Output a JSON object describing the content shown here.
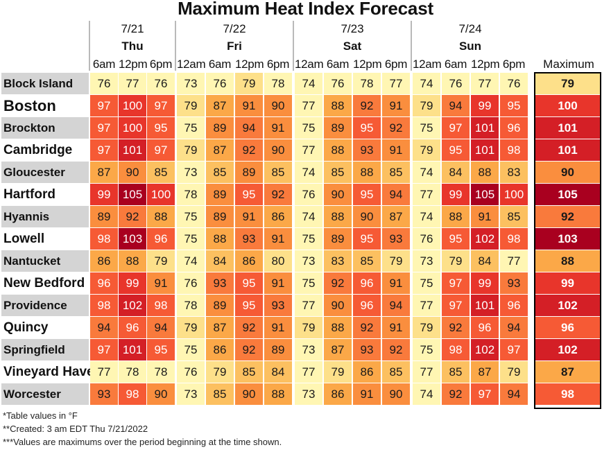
{
  "title": "Maximum Heat Index Forecast",
  "days": [
    {
      "date": "7/21",
      "dow": "Thu",
      "hours": [
        "6am",
        "12pm",
        "6pm"
      ]
    },
    {
      "date": "7/22",
      "dow": "Fri",
      "hours": [
        "12am",
        "6am",
        "12pm",
        "6pm"
      ]
    },
    {
      "date": "7/23",
      "dow": "Sat",
      "hours": [
        "12am",
        "6am",
        "12pm",
        "6pm"
      ]
    },
    {
      "date": "7/24",
      "dow": "Sun",
      "hours": [
        "12am",
        "6am",
        "12pm",
        "6pm"
      ]
    }
  ],
  "maximum_header": "Maximum",
  "chart_data": {
    "type": "table",
    "title": "Maximum Heat Index Forecast",
    "columns": [
      "7/21 Thu 6am",
      "7/21 Thu 12pm",
      "7/21 Thu 6pm",
      "7/22 Fri 12am",
      "7/22 Fri 6am",
      "7/22 Fri 12pm",
      "7/22 Fri 6pm",
      "7/23 Sat 12am",
      "7/23 Sat 6am",
      "7/23 Sat 12pm",
      "7/23 Sat 6pm",
      "7/24 Sun 12am",
      "7/24 Sun 6am",
      "7/24 Sun 12pm",
      "7/24 Sun 6pm",
      "Maximum"
    ],
    "rows": [
      {
        "location": "Block Island",
        "values": [
          76,
          77,
          76,
          73,
          76,
          79,
          78,
          74,
          76,
          78,
          77,
          74,
          76,
          77,
          76
        ],
        "max": 79
      },
      {
        "location": "Boston",
        "values": [
          97,
          100,
          97,
          79,
          87,
          91,
          90,
          77,
          88,
          92,
          91,
          79,
          94,
          99,
          95
        ],
        "max": 100
      },
      {
        "location": "Brockton",
        "values": [
          97,
          100,
          95,
          75,
          89,
          94,
          91,
          75,
          89,
          95,
          92,
          75,
          97,
          101,
          96
        ],
        "max": 101
      },
      {
        "location": "Cambridge",
        "values": [
          97,
          101,
          97,
          79,
          87,
          92,
          90,
          77,
          88,
          93,
          91,
          79,
          95,
          101,
          98
        ],
        "max": 101
      },
      {
        "location": "Gloucester",
        "values": [
          87,
          90,
          85,
          73,
          85,
          89,
          85,
          74,
          85,
          88,
          85,
          74,
          84,
          88,
          83
        ],
        "max": 90
      },
      {
        "location": "Hartford",
        "values": [
          99,
          105,
          100,
          78,
          89,
          95,
          92,
          76,
          90,
          95,
          94,
          77,
          99,
          105,
          100
        ],
        "max": 105
      },
      {
        "location": "Hyannis",
        "values": [
          89,
          92,
          88,
          75,
          89,
          91,
          86,
          74,
          88,
          90,
          87,
          74,
          88,
          91,
          85
        ],
        "max": 92
      },
      {
        "location": "Lowell",
        "values": [
          98,
          103,
          96,
          75,
          88,
          93,
          91,
          75,
          89,
          95,
          93,
          76,
          95,
          102,
          98
        ],
        "max": 103
      },
      {
        "location": "Nantucket",
        "values": [
          86,
          88,
          79,
          74,
          84,
          86,
          80,
          73,
          83,
          85,
          79,
          73,
          79,
          84,
          77
        ],
        "max": 88
      },
      {
        "location": "New Bedford",
        "values": [
          96,
          99,
          91,
          76,
          93,
          95,
          91,
          75,
          92,
          96,
          91,
          75,
          97,
          99,
          93
        ],
        "max": 99
      },
      {
        "location": "Providence",
        "values": [
          98,
          102,
          98,
          78,
          89,
          95,
          93,
          77,
          90,
          96,
          94,
          77,
          97,
          101,
          96
        ],
        "max": 102
      },
      {
        "location": "Quincy",
        "values": [
          94,
          96,
          94,
          79,
          87,
          92,
          91,
          79,
          88,
          92,
          91,
          79,
          92,
          96,
          94
        ],
        "max": 96
      },
      {
        "location": "Springfield",
        "values": [
          97,
          101,
          95,
          75,
          86,
          92,
          89,
          73,
          87,
          93,
          92,
          75,
          98,
          102,
          97
        ],
        "max": 102
      },
      {
        "location": "Vineyard Haven",
        "values": [
          77,
          78,
          78,
          76,
          79,
          85,
          84,
          77,
          79,
          86,
          85,
          77,
          85,
          87,
          79
        ],
        "max": 87
      },
      {
        "location": "Worcester",
        "values": [
          93,
          98,
          90,
          73,
          85,
          90,
          88,
          73,
          86,
          91,
          90,
          74,
          92,
          97,
          94
        ],
        "max": 98
      }
    ]
  },
  "color_scale": [
    {
      "min": 0,
      "color": "#fff6b3"
    },
    {
      "min": 79,
      "color": "#fde08a"
    },
    {
      "min": 83,
      "color": "#fcc060"
    },
    {
      "min": 86,
      "color": "#fba848"
    },
    {
      "min": 89,
      "color": "#fa8e3e"
    },
    {
      "min": 92,
      "color": "#f97a3c"
    },
    {
      "min": 95,
      "color": "#f65a35"
    },
    {
      "min": 99,
      "color": "#e8352b"
    },
    {
      "min": 101,
      "color": "#d41f26"
    },
    {
      "min": 103,
      "color": "#a9001f"
    }
  ],
  "notes": [
    "*Table values in °F",
    "**Created: 3 am EDT Thu 7/21/2022",
    "***Values are maximums over the period beginning at the time shown."
  ]
}
